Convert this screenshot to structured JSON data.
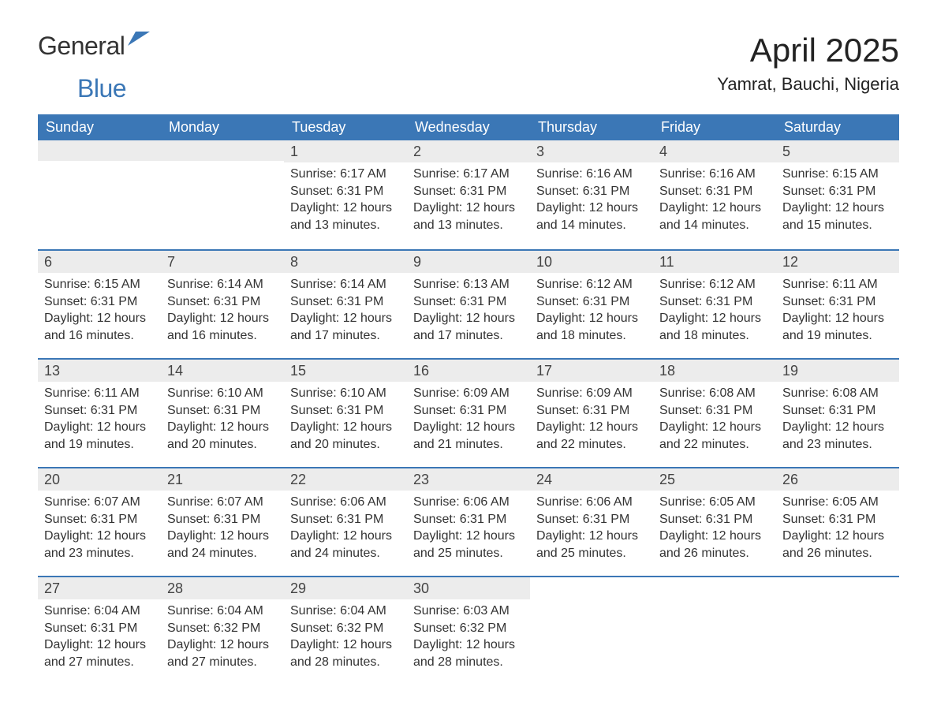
{
  "logo": {
    "word1": "General",
    "word2": "Blue"
  },
  "header": {
    "month_title": "April 2025",
    "location": "Yamrat, Bauchi, Nigeria"
  },
  "colors": {
    "header_bar": "#3b77b6",
    "header_text": "#ffffff",
    "daynum_bg": "#ececec",
    "row_border": "#3b77b6",
    "body_text": "#333333",
    "background": "#ffffff"
  },
  "weekdays": [
    "Sunday",
    "Monday",
    "Tuesday",
    "Wednesday",
    "Thursday",
    "Friday",
    "Saturday"
  ],
  "weeks": [
    [
      {
        "blank": true
      },
      {
        "blank": true
      },
      {
        "day": "1",
        "sunrise": "Sunrise: 6:17 AM",
        "sunset": "Sunset: 6:31 PM",
        "daylight": "Daylight: 12 hours and 13 minutes."
      },
      {
        "day": "2",
        "sunrise": "Sunrise: 6:17 AM",
        "sunset": "Sunset: 6:31 PM",
        "daylight": "Daylight: 12 hours and 13 minutes."
      },
      {
        "day": "3",
        "sunrise": "Sunrise: 6:16 AM",
        "sunset": "Sunset: 6:31 PM",
        "daylight": "Daylight: 12 hours and 14 minutes."
      },
      {
        "day": "4",
        "sunrise": "Sunrise: 6:16 AM",
        "sunset": "Sunset: 6:31 PM",
        "daylight": "Daylight: 12 hours and 14 minutes."
      },
      {
        "day": "5",
        "sunrise": "Sunrise: 6:15 AM",
        "sunset": "Sunset: 6:31 PM",
        "daylight": "Daylight: 12 hours and 15 minutes."
      }
    ],
    [
      {
        "day": "6",
        "sunrise": "Sunrise: 6:15 AM",
        "sunset": "Sunset: 6:31 PM",
        "daylight": "Daylight: 12 hours and 16 minutes."
      },
      {
        "day": "7",
        "sunrise": "Sunrise: 6:14 AM",
        "sunset": "Sunset: 6:31 PM",
        "daylight": "Daylight: 12 hours and 16 minutes."
      },
      {
        "day": "8",
        "sunrise": "Sunrise: 6:14 AM",
        "sunset": "Sunset: 6:31 PM",
        "daylight": "Daylight: 12 hours and 17 minutes."
      },
      {
        "day": "9",
        "sunrise": "Sunrise: 6:13 AM",
        "sunset": "Sunset: 6:31 PM",
        "daylight": "Daylight: 12 hours and 17 minutes."
      },
      {
        "day": "10",
        "sunrise": "Sunrise: 6:12 AM",
        "sunset": "Sunset: 6:31 PM",
        "daylight": "Daylight: 12 hours and 18 minutes."
      },
      {
        "day": "11",
        "sunrise": "Sunrise: 6:12 AM",
        "sunset": "Sunset: 6:31 PM",
        "daylight": "Daylight: 12 hours and 18 minutes."
      },
      {
        "day": "12",
        "sunrise": "Sunrise: 6:11 AM",
        "sunset": "Sunset: 6:31 PM",
        "daylight": "Daylight: 12 hours and 19 minutes."
      }
    ],
    [
      {
        "day": "13",
        "sunrise": "Sunrise: 6:11 AM",
        "sunset": "Sunset: 6:31 PM",
        "daylight": "Daylight: 12 hours and 19 minutes."
      },
      {
        "day": "14",
        "sunrise": "Sunrise: 6:10 AM",
        "sunset": "Sunset: 6:31 PM",
        "daylight": "Daylight: 12 hours and 20 minutes."
      },
      {
        "day": "15",
        "sunrise": "Sunrise: 6:10 AM",
        "sunset": "Sunset: 6:31 PM",
        "daylight": "Daylight: 12 hours and 20 minutes."
      },
      {
        "day": "16",
        "sunrise": "Sunrise: 6:09 AM",
        "sunset": "Sunset: 6:31 PM",
        "daylight": "Daylight: 12 hours and 21 minutes."
      },
      {
        "day": "17",
        "sunrise": "Sunrise: 6:09 AM",
        "sunset": "Sunset: 6:31 PM",
        "daylight": "Daylight: 12 hours and 22 minutes."
      },
      {
        "day": "18",
        "sunrise": "Sunrise: 6:08 AM",
        "sunset": "Sunset: 6:31 PM",
        "daylight": "Daylight: 12 hours and 22 minutes."
      },
      {
        "day": "19",
        "sunrise": "Sunrise: 6:08 AM",
        "sunset": "Sunset: 6:31 PM",
        "daylight": "Daylight: 12 hours and 23 minutes."
      }
    ],
    [
      {
        "day": "20",
        "sunrise": "Sunrise: 6:07 AM",
        "sunset": "Sunset: 6:31 PM",
        "daylight": "Daylight: 12 hours and 23 minutes."
      },
      {
        "day": "21",
        "sunrise": "Sunrise: 6:07 AM",
        "sunset": "Sunset: 6:31 PM",
        "daylight": "Daylight: 12 hours and 24 minutes."
      },
      {
        "day": "22",
        "sunrise": "Sunrise: 6:06 AM",
        "sunset": "Sunset: 6:31 PM",
        "daylight": "Daylight: 12 hours and 24 minutes."
      },
      {
        "day": "23",
        "sunrise": "Sunrise: 6:06 AM",
        "sunset": "Sunset: 6:31 PM",
        "daylight": "Daylight: 12 hours and 25 minutes."
      },
      {
        "day": "24",
        "sunrise": "Sunrise: 6:06 AM",
        "sunset": "Sunset: 6:31 PM",
        "daylight": "Daylight: 12 hours and 25 minutes."
      },
      {
        "day": "25",
        "sunrise": "Sunrise: 6:05 AM",
        "sunset": "Sunset: 6:31 PM",
        "daylight": "Daylight: 12 hours and 26 minutes."
      },
      {
        "day": "26",
        "sunrise": "Sunrise: 6:05 AM",
        "sunset": "Sunset: 6:31 PM",
        "daylight": "Daylight: 12 hours and 26 minutes."
      }
    ],
    [
      {
        "day": "27",
        "sunrise": "Sunrise: 6:04 AM",
        "sunset": "Sunset: 6:31 PM",
        "daylight": "Daylight: 12 hours and 27 minutes."
      },
      {
        "day": "28",
        "sunrise": "Sunrise: 6:04 AM",
        "sunset": "Sunset: 6:32 PM",
        "daylight": "Daylight: 12 hours and 27 minutes."
      },
      {
        "day": "29",
        "sunrise": "Sunrise: 6:04 AM",
        "sunset": "Sunset: 6:32 PM",
        "daylight": "Daylight: 12 hours and 28 minutes."
      },
      {
        "day": "30",
        "sunrise": "Sunrise: 6:03 AM",
        "sunset": "Sunset: 6:32 PM",
        "daylight": "Daylight: 12 hours and 28 minutes."
      },
      {
        "blank": true
      },
      {
        "blank": true
      },
      {
        "blank": true
      }
    ]
  ]
}
